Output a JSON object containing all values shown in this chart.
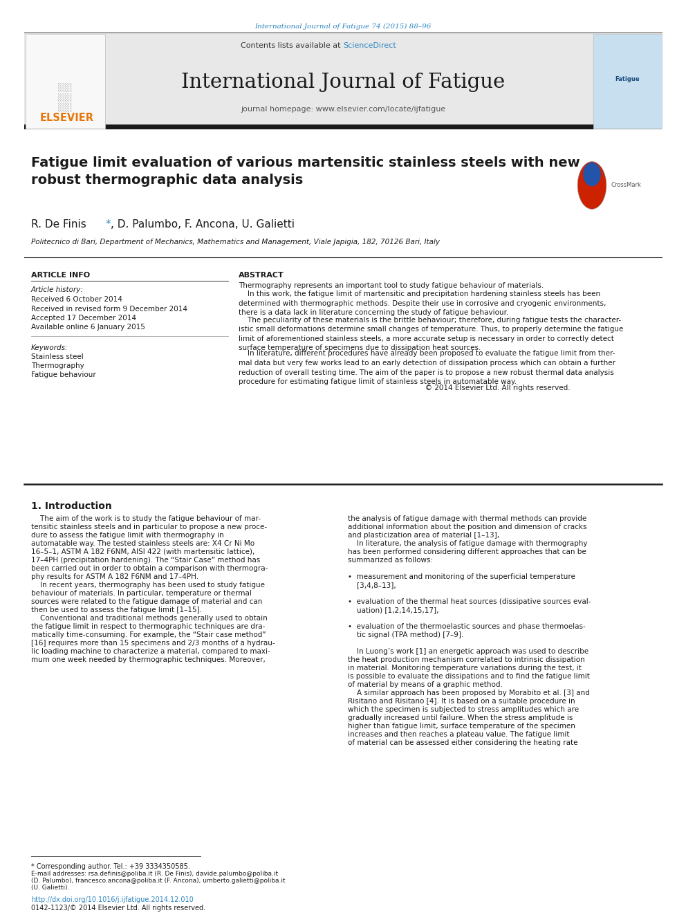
{
  "page_width": 9.92,
  "page_height": 13.23,
  "bg_color": "#ffffff",
  "top_journal_ref": "International Journal of Fatigue 74 (2015) 88–96",
  "top_journal_ref_color": "#2e86c1",
  "journal_name": "International Journal of Fatigue",
  "contents_line": "Contents lists available at",
  "sciencedirect": "ScienceDirect",
  "sciencedirect_color": "#2e86c1",
  "journal_homepage": "journal homepage: www.elsevier.com/locate/ijfatigue",
  "elsevier_color": "#e8760a",
  "header_bg": "#e8e8e8",
  "black_bar_color": "#1a1a1a",
  "paper_title": "Fatigue limit evaluation of various martensitic stainless steels with new\nrobust thermographic data analysis",
  "authors_pre": "R. De Finis ",
  "authors_post": ", D. Palumbo, F. Ancona, U. Galietti",
  "affiliation": "Politecnico di Bari, Department of Mechanics, Mathematics and Management, Viale Japigia, 182, 70126 Bari, Italy",
  "section_article_info": "ARTICLE INFO",
  "section_abstract": "ABSTRACT",
  "article_history_label": "Article history:",
  "history_lines": [
    "Received 6 October 2014",
    "Received in revised form 9 December 2014",
    "Accepted 17 December 2014",
    "Available online 6 January 2015"
  ],
  "keywords_label": "Keywords:",
  "keywords": [
    "Stainless steel",
    "Thermography",
    "Fatigue behaviour"
  ],
  "abstract_first_line": "Thermography represents an important tool to study fatigue behaviour of materials.",
  "abstract_paragraphs": [
    "    In this work, the fatigue limit of martensitic and precipitation hardening stainless steels has been\ndetermined with thermographic methods. Despite their use in corrosive and cryogenic environments,\nthere is a data lack in literature concerning the study of fatigue behaviour.",
    "    The peculiarity of these materials is the brittle behaviour; therefore, during fatigue tests the character-\nistic small deformations determine small changes of temperature. Thus, to properly determine the fatigue\nlimit of aforementioned stainless steels, a more accurate setup is necessary in order to correctly detect\nsurface temperature of specimens due to dissipation heat sources.",
    "    In literature, different procedures have already been proposed to evaluate the fatigue limit from ther-\nmal data but very few works lead to an early detection of dissipation process which can obtain a further\nreduction of overall testing time. The aim of the paper is to propose a new robust thermal data analysis\nprocedure for estimating fatigue limit of stainless steels in automatable way.",
    "                                                                                   © 2014 Elsevier Ltd. All rights reserved."
  ],
  "intro_heading": "1. Introduction",
  "intro_col1_lines": [
    "    The aim of the work is to study the fatigue behaviour of mar-",
    "tensitic stainless steels and in particular to propose a new proce-",
    "dure to assess the fatigue limit with thermography in",
    "automatable way. The tested stainless steels are: X4 Cr Ni Mo",
    "16–5–1, ASTM A 182 F6NM, AISI 422 (with martensitic lattice),",
    "17–4PH (precipitation hardening). The “Stair Case” method has",
    "been carried out in order to obtain a comparison with thermogra-",
    "phy results for ASTM A 182 F6NM and 17–4PH.",
    "    In recent years, thermography has been used to study fatigue",
    "behaviour of materials. In particular, temperature or thermal",
    "sources were related to the fatigue damage of material and can",
    "then be used to assess the fatigue limit [1–15].",
    "    Conventional and traditional methods generally used to obtain",
    "the fatigue limit in respect to thermographic techniques are dra-",
    "matically time-consuming. For example, the “Stair case method”",
    "[16] requires more than 15 specimens and 2/3 months of a hydrau-",
    "lic loading machine to characterize a material, compared to maxi-",
    "mum one week needed by thermographic techniques. Moreover,"
  ],
  "intro_col2_lines": [
    "the analysis of fatigue damage with thermal methods can provide",
    "additional information about the position and dimension of cracks",
    "and plasticization area of material [1–13],",
    "    In literature, the analysis of fatigue damage with thermography",
    "has been performed considering different approaches that can be",
    "summarized as follows:",
    "",
    "•  measurement and monitoring of the superficial temperature",
    "    [3,4,8–13],",
    "",
    "•  evaluation of the thermal heat sources (dissipative sources eval-",
    "    uation) [1,2,14,15,17],",
    "",
    "•  evaluation of the thermoelastic sources and phase thermoelas-",
    "    tic signal (TPA method) [7–9].",
    "",
    "    In Luong’s work [1] an energetic approach was used to describe",
    "the heat production mechanism correlated to intrinsic dissipation",
    "in material. Monitoring temperature variations during the test, it",
    "is possible to evaluate the dissipations and to find the fatigue limit",
    "of material by means of a graphic method.",
    "    A similar approach has been proposed by Morabito et al. [3] and",
    "Risitano and Risitano [4]. It is based on a suitable procedure in",
    "which the specimen is subjected to stress amplitudes which are",
    "gradually increased until failure. When the stress amplitude is",
    "higher than fatigue limit, surface temperature of the specimen",
    "increases and then reaches a plateau value. The fatigue limit",
    "of material can be assessed either considering the heating rate"
  ],
  "footnote_star": "* Corresponding author. Tel.: +39 3334350585.",
  "footnote_emails_line1": "E-mail addresses: rsa.definis@poliba.it (R. De Finis), davide.palumbo@poliba.it",
  "footnote_emails_line2": "(D. Palumbo), francesco.ancona@poliba.it (F. Ancona), umberto.galietti@poliba.it",
  "footnote_emails_line3": "(U. Galietti).",
  "doi_line": "http://dx.doi.org/10.1016/j.ijfatigue.2014.12.010",
  "doi_line_color": "#2e86c1",
  "copyright_line": "0142-1123/© 2014 Elsevier Ltd. All rights reserved."
}
